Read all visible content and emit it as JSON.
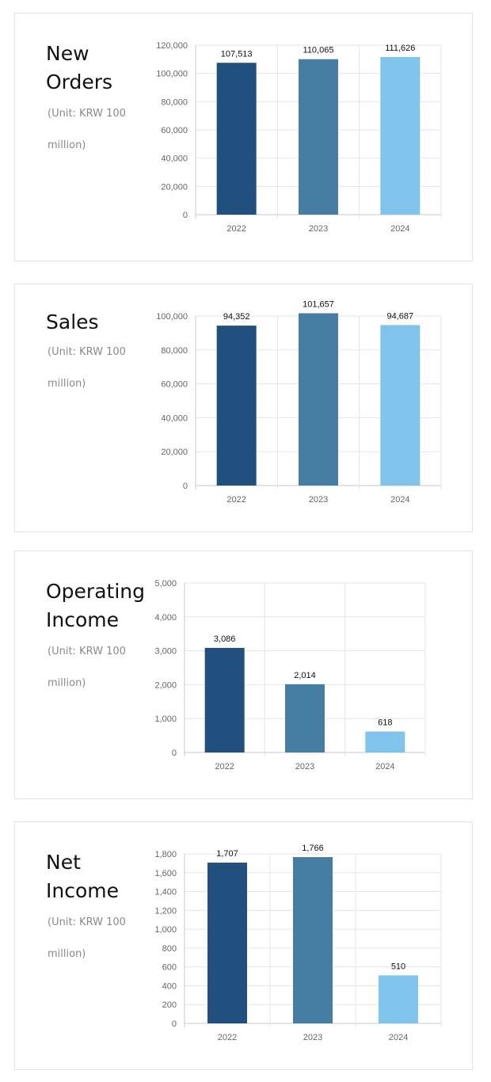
{
  "colors": {
    "y2022": "#214f7e",
    "y2023": "#467ea3",
    "y2024": "#80c3eb",
    "bg": "#ffffff",
    "border": "#e3e3e3"
  },
  "cards": [
    {
      "title": "New Orders",
      "unit": "(Unit: KRW 100 million)"
    },
    {
      "title": "Sales",
      "unit": "(Unit: KRW 100 million)"
    },
    {
      "title": "Operating Income",
      "unit": "(Unit: KRW 100 million)"
    },
    {
      "title": "Net Income",
      "unit": "(Unit: KRW 100 million)"
    }
  ],
  "chart_data": [
    {
      "type": "bar",
      "title": "New Orders",
      "categories": [
        "2022",
        "2023",
        "2024"
      ],
      "values": [
        107513,
        110065,
        111626
      ],
      "value_labels": [
        "107,513",
        "110,065",
        "111,626"
      ],
      "yticks": [
        "0",
        "20,000",
        "40,000",
        "60,000",
        "80,000",
        "100,000",
        "120,000"
      ],
      "ylim": [
        0,
        120000
      ],
      "grid": true,
      "legend": "none"
    },
    {
      "type": "bar",
      "title": "Sales",
      "categories": [
        "2022",
        "2023",
        "2024"
      ],
      "values": [
        94352,
        101657,
        94687
      ],
      "value_labels": [
        "94,352",
        "101,657",
        "94,687"
      ],
      "yticks": [
        "0",
        "20,000",
        "40,000",
        "60,000",
        "80,000",
        "100,000"
      ],
      "ylim": [
        0,
        100000
      ],
      "grid": true,
      "legend": "none"
    },
    {
      "type": "bar",
      "title": "Operating Income",
      "categories": [
        "2022",
        "2023",
        "2024"
      ],
      "values": [
        3086,
        2014,
        618
      ],
      "value_labels": [
        "3,086",
        "2,014",
        "618"
      ],
      "yticks": [
        "0",
        "1,000",
        "2,000",
        "3,000",
        "4,000",
        "5,000"
      ],
      "ylim": [
        0,
        5000
      ],
      "grid": true,
      "legend": "none"
    },
    {
      "type": "bar",
      "title": "Net Income",
      "categories": [
        "2022",
        "2023",
        "2024"
      ],
      "values": [
        1707,
        1766,
        510
      ],
      "value_labels": [
        "1,707",
        "1,766",
        "510"
      ],
      "yticks": [
        "0",
        "200",
        "400",
        "600",
        "800",
        "1,000",
        "1,200",
        "1,400",
        "1,600",
        "1,800"
      ],
      "ylim": [
        0,
        1800
      ],
      "grid": true,
      "legend": "none"
    }
  ]
}
